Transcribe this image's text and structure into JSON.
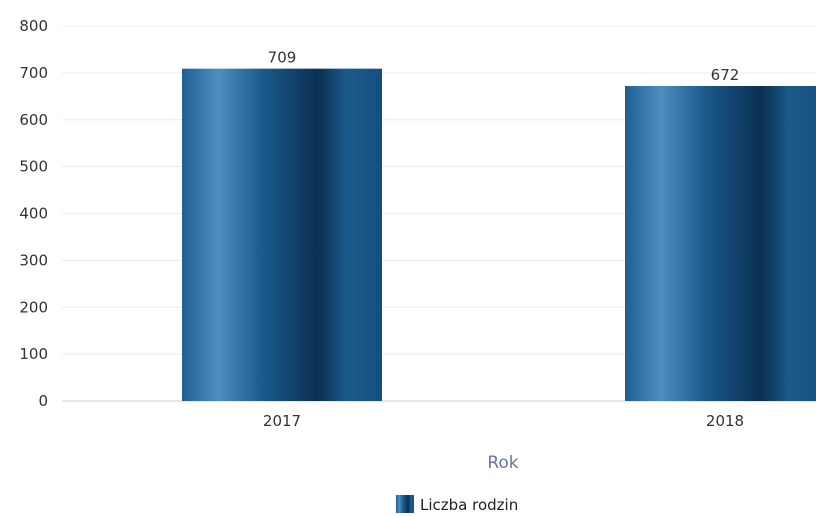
{
  "chart_data": {
    "type": "bar",
    "categories": [
      "2017",
      "2018"
    ],
    "series": [
      {
        "name": "Liczba rodzin",
        "values": [
          709,
          672
        ]
      }
    ],
    "title": "",
    "xlabel": "Rok",
    "ylabel": "",
    "ylim": [
      0,
      800
    ],
    "yticks": [
      0,
      100,
      200,
      300,
      400,
      500,
      600,
      700,
      800
    ],
    "grid": true,
    "legend": "bottom-center",
    "colors": {
      "bar": "#1a5a8c",
      "bar_dark": "#0b2f52",
      "bar_light": "#4f8fbf",
      "xlabel": "#6a73a8"
    }
  }
}
